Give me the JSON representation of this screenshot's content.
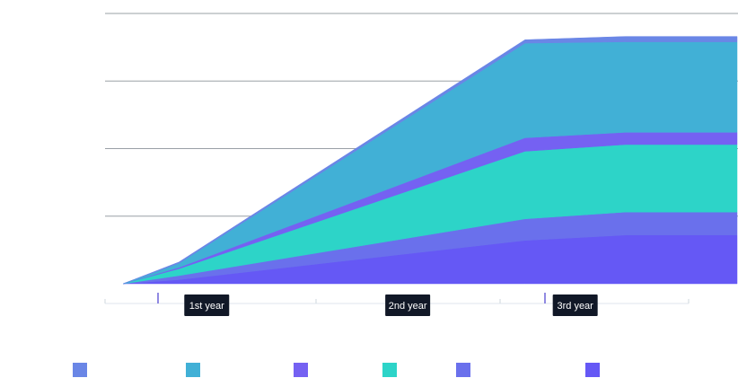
{
  "chart_data": {
    "type": "area",
    "stacked": true,
    "grid": true,
    "y_ticks_visible": false,
    "ylim": [
      0,
      4
    ],
    "x": [
      0,
      0.5,
      3.6,
      4.5,
      5.5
    ],
    "x_period_labels": [
      {
        "label": "1st year",
        "x": 0.75
      },
      {
        "label": "2nd year",
        "x": 2.55
      },
      {
        "label": "3rd year",
        "x": 4.05
      }
    ],
    "series": [
      {
        "color": "#6558f5",
        "values": [
          0,
          0.06,
          0.64,
          0.72,
          0.72
        ]
      },
      {
        "color": "#6a70ec",
        "values": [
          0,
          0.06,
          0.32,
          0.34,
          0.34
        ]
      },
      {
        "color": "#2dd4c8",
        "values": [
          0,
          0.1,
          1.0,
          1.0,
          1.0
        ]
      },
      {
        "color": "#7561f2",
        "values": [
          0,
          0.02,
          0.2,
          0.18,
          0.18
        ]
      },
      {
        "color": "#41b0d6",
        "values": [
          0,
          0.06,
          1.4,
          1.34,
          1.34
        ]
      },
      {
        "color": "#6a86e6",
        "values": [
          0,
          0.02,
          0.05,
          0.08,
          0.08
        ]
      }
    ],
    "legend": {
      "placement": "bottom",
      "colors": [
        "#6a86e6",
        "#41b0d6",
        "#7561f2",
        "#2dd4c8",
        "#6a70ec",
        "#6558f5"
      ]
    }
  }
}
